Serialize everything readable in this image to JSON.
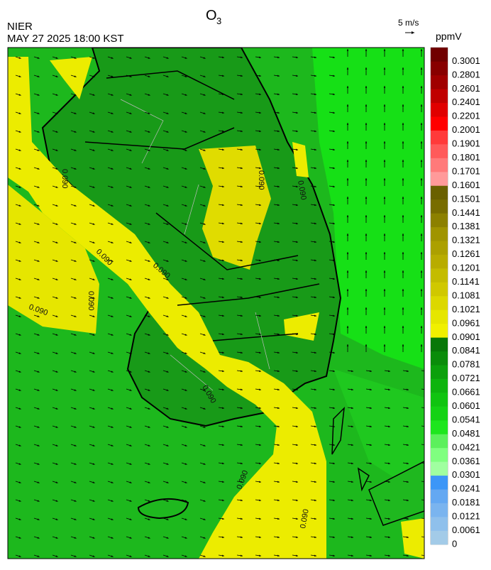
{
  "header": {
    "title": "O",
    "title_sub": "3",
    "agency": "NIER",
    "datetime": "MAY 27 2025 18:00 KST",
    "wind_scale": "5 m/s"
  },
  "map": {
    "contour_label": "0.090"
  },
  "colorbar": {
    "unit": "ppmV",
    "levels": [
      0,
      0.0061,
      0.0121,
      0.0181,
      0.0241,
      0.0301,
      0.0361,
      0.0421,
      0.0481,
      0.0541,
      0.0601,
      0.0661,
      0.0721,
      0.0781,
      0.0841,
      0.0901,
      0.0961,
      0.1021,
      0.1081,
      0.1141,
      0.1201,
      0.1261,
      0.1321,
      0.1381,
      0.1441,
      0.1501,
      0.1601,
      0.1701,
      0.1801,
      0.1901,
      0.2001,
      0.2201,
      0.2401,
      0.2601,
      0.2801,
      0.3001
    ],
    "colors": [
      "#a3cbe8",
      "#8fc0ec",
      "#7ab4ef",
      "#64a8f2",
      "#3c96f7",
      "#a0ffa0",
      "#80ff80",
      "#5cf05c",
      "#1ee61e",
      "#14d214",
      "#10c410",
      "#0eb40e",
      "#0ca00c",
      "#0a8c0a",
      "#087808",
      "#f0f000",
      "#e6e600",
      "#dcd800",
      "#d0c800",
      "#c4bc00",
      "#b8ac00",
      "#aca000",
      "#a09400",
      "#8c8000",
      "#786c00",
      "#6a6000",
      "#ff9a9a",
      "#ff7a7a",
      "#ff5a5a",
      "#ff3a3a",
      "#ff0000",
      "#e00000",
      "#c00000",
      "#a00000",
      "#880000",
      "#700000"
    ]
  }
}
